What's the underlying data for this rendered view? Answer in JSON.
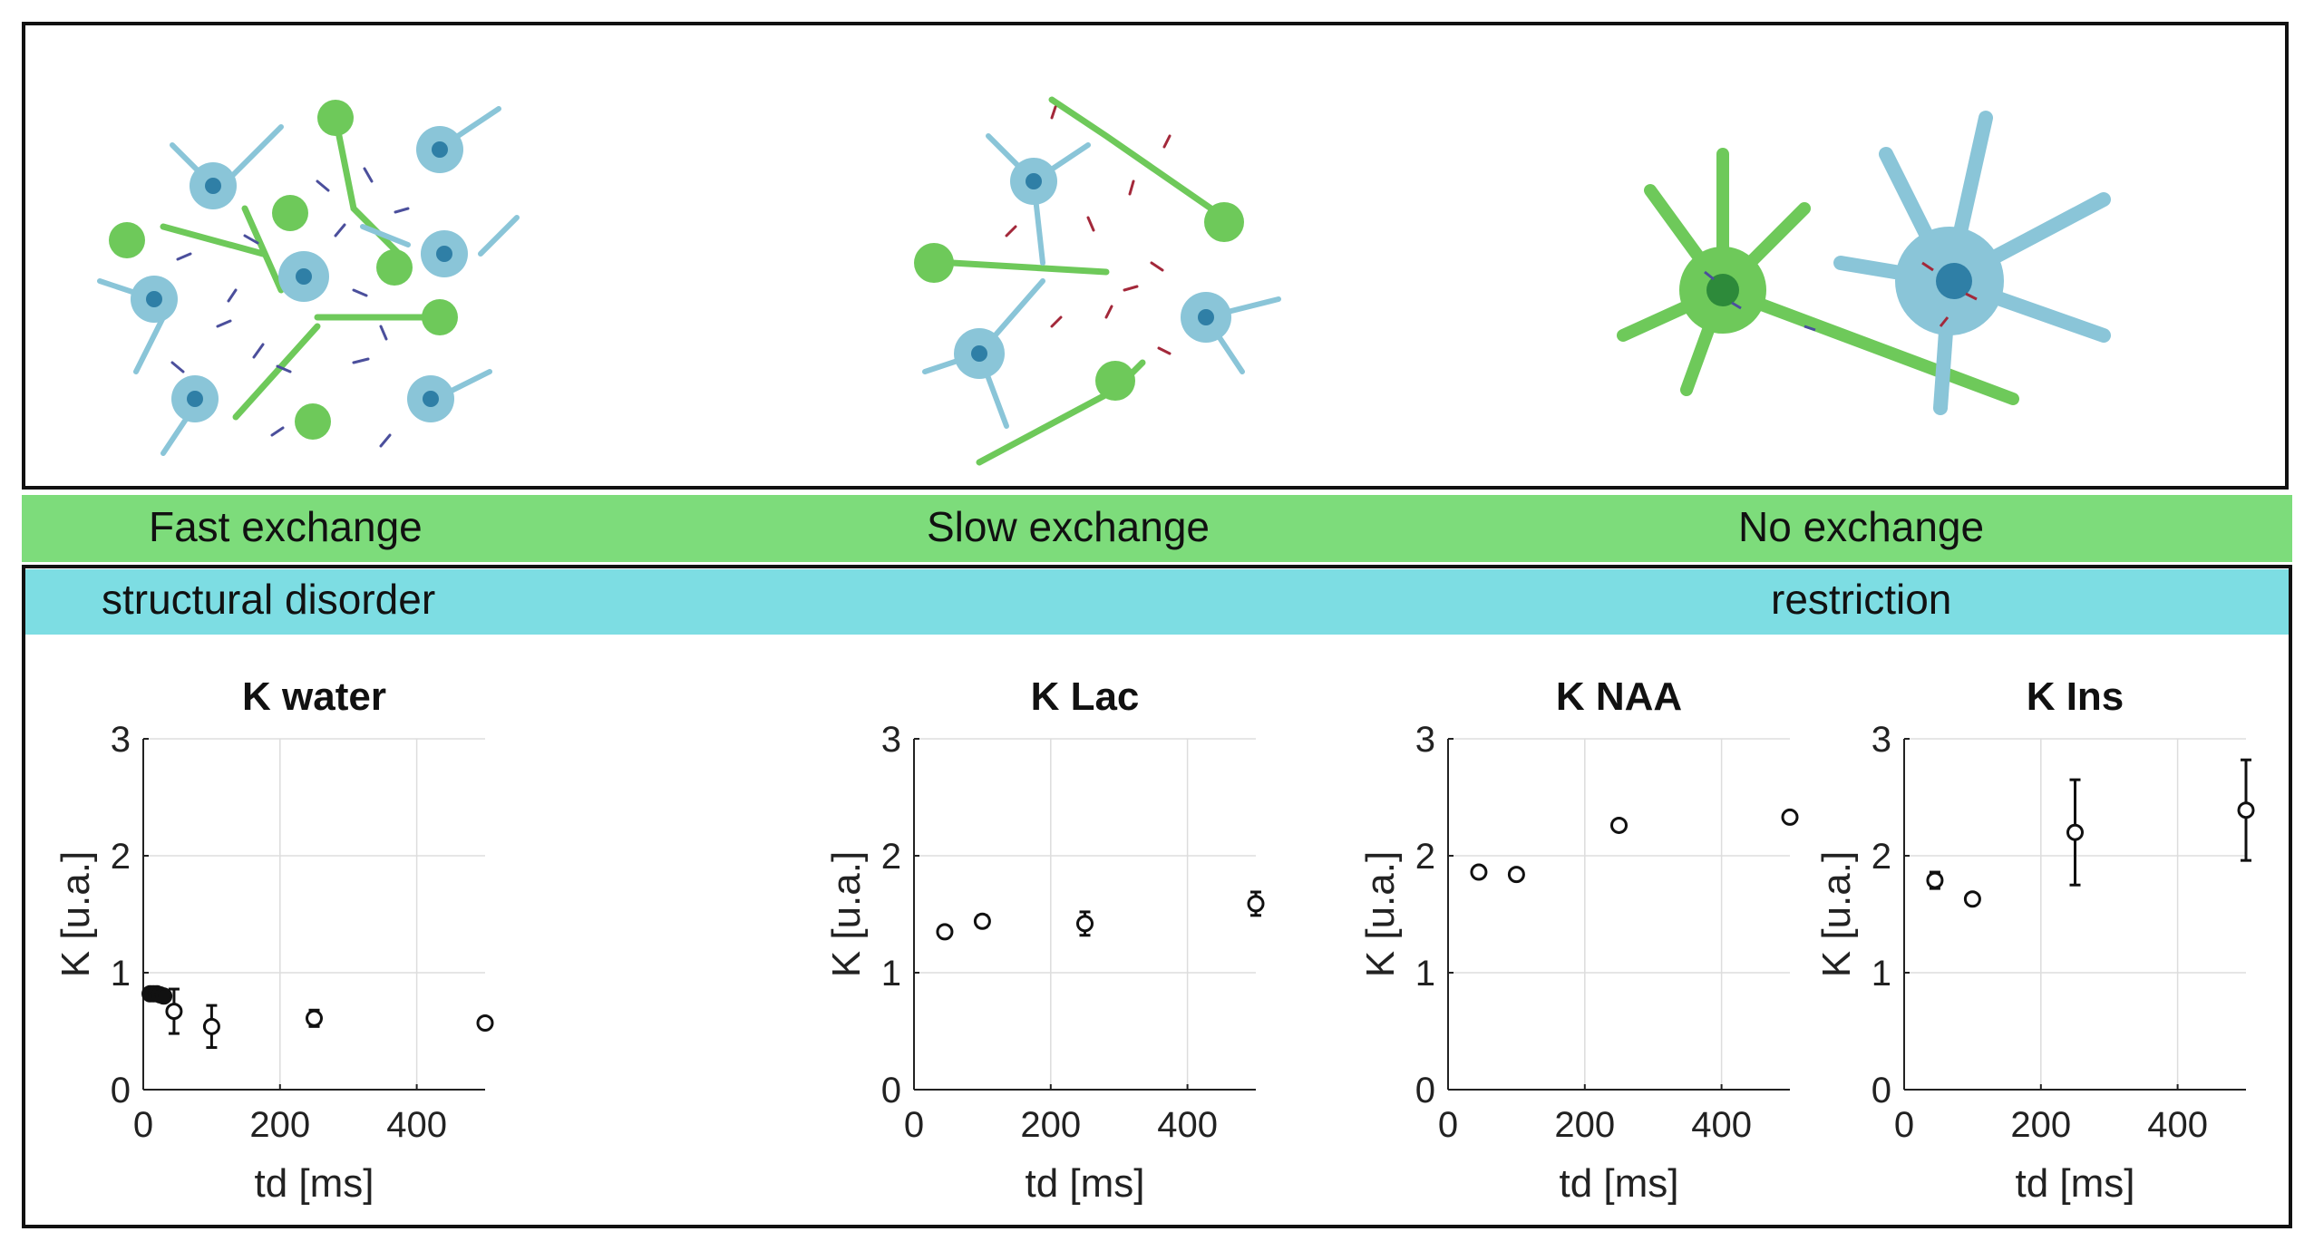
{
  "bands": {
    "exchange": [
      "Fast exchange",
      "Slow exchange",
      "No exchange"
    ],
    "regime_left": "structural disorder",
    "regime_right": "restriction"
  },
  "colors": {
    "exchange_band": "#7ddc7b",
    "regime_band": "#7ddde3",
    "glia_cell": "#6ec95a",
    "neuron_cell": "#8ac5d8",
    "fast_arrows": "#4b4f9c",
    "slow_arrows": "#a3283a"
  },
  "illustrations": [
    "fast-exchange-cells-illustration",
    "slow-exchange-cells-illustration",
    "no-exchange-cells-illustration"
  ],
  "chart_data": [
    {
      "type": "scatter",
      "title": "K water",
      "xlabel": "td [ms]",
      "ylabel": "K [u.a.]",
      "xlim": [
        0,
        500
      ],
      "ylim": [
        0,
        3
      ],
      "xticks": [
        0,
        200,
        400
      ],
      "yticks": [
        0,
        1,
        2,
        3
      ],
      "grid": true,
      "x": [
        10,
        15,
        20,
        25,
        30,
        45,
        100,
        250,
        500
      ],
      "y": [
        0.82,
        0.82,
        0.82,
        0.81,
        0.8,
        0.67,
        0.54,
        0.61,
        0.57
      ],
      "err": [
        0.03,
        0.03,
        0.03,
        0.03,
        0.03,
        0.19,
        0.18,
        0.07,
        0.04
      ],
      "filled": [
        true,
        true,
        true,
        true,
        true,
        false,
        false,
        false,
        false
      ]
    },
    {
      "type": "scatter",
      "title": "K Lac",
      "xlabel": "td [ms]",
      "ylabel": "K [u.a.]",
      "xlim": [
        0,
        500
      ],
      "ylim": [
        0,
        3
      ],
      "xticks": [
        0,
        200,
        400
      ],
      "yticks": [
        0,
        1,
        2,
        3
      ],
      "grid": true,
      "x": [
        45,
        100,
        250,
        500
      ],
      "y": [
        1.35,
        1.44,
        1.42,
        1.59
      ],
      "err": [
        0.04,
        0.05,
        0.1,
        0.1
      ],
      "filled": [
        false,
        false,
        false,
        false
      ]
    },
    {
      "type": "scatter",
      "title": "K NAA",
      "xlabel": "td [ms]",
      "ylabel": "K [u.a.]",
      "xlim": [
        0,
        500
      ],
      "ylim": [
        0,
        3
      ],
      "xticks": [
        0,
        200,
        400
      ],
      "yticks": [
        0,
        1,
        2,
        3
      ],
      "grid": true,
      "x": [
        45,
        100,
        250,
        500
      ],
      "y": [
        1.86,
        1.84,
        2.26,
        2.33
      ],
      "err": [
        0.04,
        0.04,
        0.04,
        0.04
      ],
      "filled": [
        false,
        false,
        false,
        false
      ]
    },
    {
      "type": "scatter",
      "title": "K Ins",
      "xlabel": "td [ms]",
      "ylabel": "K [u.a.]",
      "xlim": [
        0,
        500
      ],
      "ylim": [
        0,
        3
      ],
      "xticks": [
        0,
        200,
        400
      ],
      "yticks": [
        0,
        1,
        2,
        3
      ],
      "grid": true,
      "x": [
        45,
        100,
        250,
        500
      ],
      "y": [
        1.79,
        1.63,
        2.2,
        2.39
      ],
      "err": [
        0.07,
        0.04,
        0.45,
        0.43
      ],
      "filled": [
        false,
        false,
        false,
        false
      ]
    }
  ]
}
